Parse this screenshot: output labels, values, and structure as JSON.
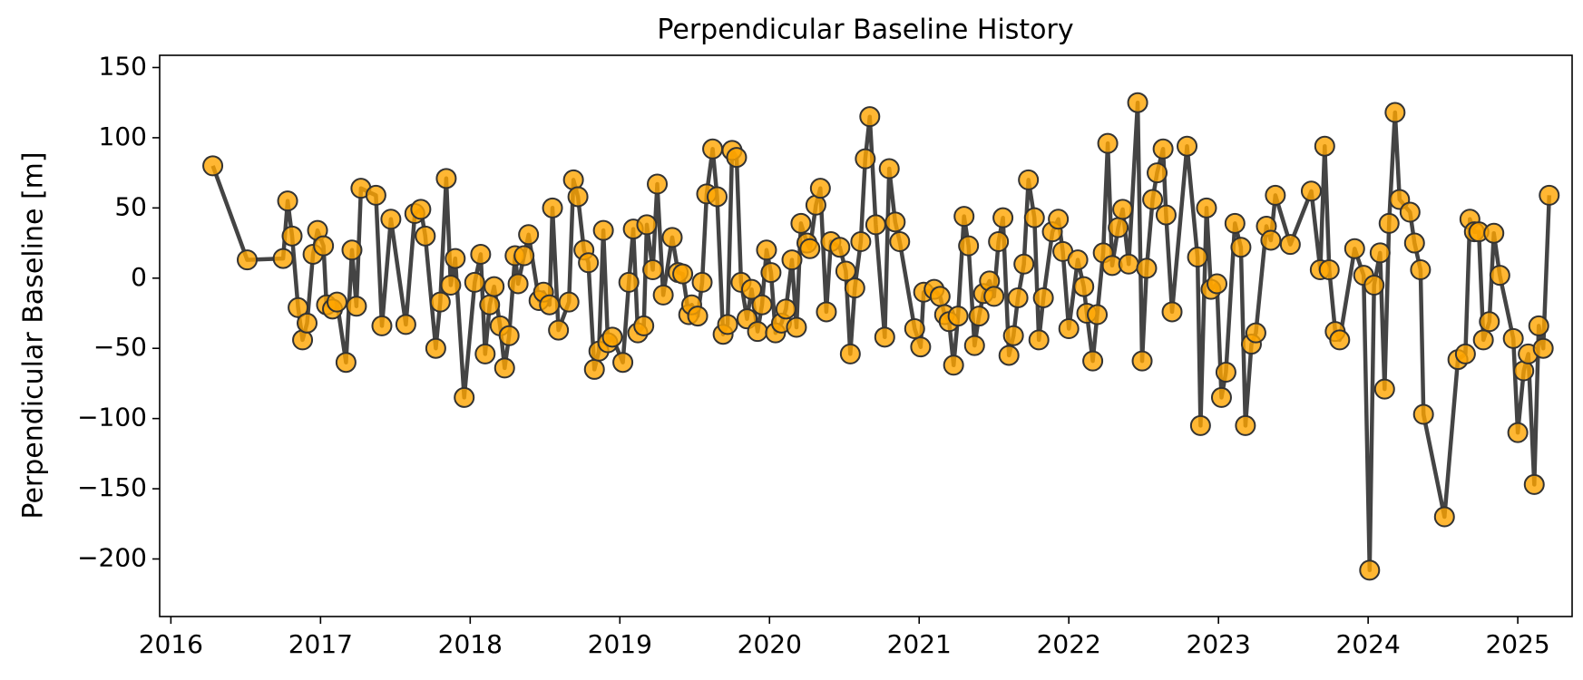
{
  "chart_data": {
    "type": "line",
    "title": "Perpendicular Baseline History",
    "y_label": "Perpendicular Baseline [m]",
    "line_color": "#444444",
    "marker_color": "#ffa500",
    "marker_edge": "#333333",
    "x": [
      2016.28,
      2016.51,
      2016.75,
      2016.78,
      2016.81,
      2016.85,
      2016.88,
      2016.91,
      2016.95,
      2016.98,
      2017.02,
      2017.04,
      2017.08,
      2017.11,
      2017.17,
      2017.21,
      2017.24,
      2017.27,
      2017.37,
      2017.41,
      2017.47,
      2017.57,
      2017.63,
      2017.67,
      2017.7,
      2017.77,
      2017.8,
      2017.84,
      2017.87,
      2017.9,
      2017.96,
      2018.03,
      2018.07,
      2018.1,
      2018.13,
      2018.16,
      2018.2,
      2018.23,
      2018.26,
      2018.3,
      2018.32,
      2018.36,
      2018.39,
      2018.46,
      2018.49,
      2018.53,
      2018.55,
      2018.59,
      2018.66,
      2018.69,
      2018.72,
      2018.76,
      2018.79,
      2018.83,
      2018.86,
      2018.89,
      2018.92,
      2018.95,
      2019.02,
      2019.06,
      2019.09,
      2019.12,
      2019.16,
      2019.18,
      2019.22,
      2019.25,
      2019.29,
      2019.35,
      2019.39,
      2019.42,
      2019.46,
      2019.48,
      2019.52,
      2019.55,
      2019.58,
      2019.62,
      2019.65,
      2019.69,
      2019.72,
      2019.75,
      2019.78,
      2019.81,
      2019.85,
      2019.88,
      2019.92,
      2019.95,
      2019.98,
      2020.01,
      2020.04,
      2020.08,
      2020.11,
      2020.15,
      2020.18,
      2020.21,
      2020.25,
      2020.27,
      2020.31,
      2020.34,
      2020.38,
      2020.41,
      2020.47,
      2020.51,
      2020.54,
      2020.57,
      2020.61,
      2020.64,
      2020.67,
      2020.71,
      2020.77,
      2020.8,
      2020.84,
      2020.87,
      2020.97,
      2021.01,
      2021.03,
      2021.1,
      2021.14,
      2021.17,
      2021.2,
      2021.23,
      2021.26,
      2021.3,
      2021.33,
      2021.37,
      2021.4,
      2021.43,
      2021.47,
      2021.5,
      2021.53,
      2021.56,
      2021.6,
      2021.63,
      2021.66,
      2021.7,
      2021.73,
      2021.77,
      2021.8,
      2021.83,
      2021.89,
      2021.93,
      2021.96,
      2022.0,
      2022.06,
      2022.1,
      2022.12,
      2022.16,
      2022.19,
      2022.23,
      2022.26,
      2022.29,
      2022.33,
      2022.36,
      2022.4,
      2022.46,
      2022.49,
      2022.52,
      2022.56,
      2022.59,
      2022.63,
      2022.65,
      2022.69,
      2022.79,
      2022.86,
      2022.88,
      2022.92,
      2022.95,
      2022.99,
      2023.02,
      2023.05,
      2023.11,
      2023.15,
      2023.18,
      2023.22,
      2023.25,
      2023.32,
      2023.35,
      2023.38,
      2023.48,
      2023.62,
      2023.68,
      2023.71,
      2023.74,
      2023.78,
      2023.81,
      2023.91,
      2023.97,
      2024.01,
      2024.04,
      2024.08,
      2024.11,
      2024.14,
      2024.18,
      2024.21,
      2024.28,
      2024.31,
      2024.35,
      2024.37,
      2024.51,
      2024.6,
      2024.65,
      2024.68,
      2024.71,
      2024.74,
      2024.77,
      2024.81,
      2024.84,
      2024.88,
      2024.97,
      2025.0,
      2025.04,
      2025.07,
      2025.11,
      2025.14,
      2025.17,
      2025.21
    ],
    "values": [
      80,
      13,
      14,
      55,
      30,
      -21,
      -44,
      -32,
      17,
      34,
      23,
      -19,
      -22,
      -17,
      -60,
      20,
      -20,
      64,
      59,
      -34,
      42,
      -33,
      46,
      49,
      30,
      -50,
      -17,
      71,
      -5,
      14,
      -85,
      -3,
      17,
      -54,
      -19,
      -6,
      -34,
      -64,
      -41,
      16,
      -4,
      16,
      31,
      -16,
      -10,
      -19,
      50,
      -37,
      -17,
      70,
      58,
      20,
      11,
      -65,
      -52,
      34,
      -46,
      -42,
      -60,
      -3,
      35,
      -39,
      -34,
      38,
      6,
      67,
      -12,
      29,
      4,
      3,
      -26,
      -19,
      -27,
      -3,
      60,
      92,
      58,
      -40,
      -33,
      91,
      86,
      -3,
      -29,
      -8,
      -38,
      -19,
      20,
      4,
      -39,
      -32,
      -22,
      13,
      -35,
      39,
      25,
      21,
      52,
      64,
      -24,
      26,
      22,
      5,
      -54,
      -7,
      26,
      85,
      115,
      38,
      -42,
      78,
      40,
      26,
      -36,
      -49,
      -10,
      -8,
      -13,
      -26,
      -31,
      -62,
      -27,
      44,
      23,
      -48,
      -27,
      -11,
      -2,
      -13,
      26,
      43,
      -55,
      -41,
      -14,
      10,
      70,
      43,
      -44,
      -14,
      33,
      42,
      19,
      -36,
      13,
      -6,
      -25,
      -59,
      -26,
      18,
      96,
      9,
      36,
      49,
      10,
      125,
      -59,
      7,
      56,
      75,
      92,
      45,
      -24,
      94,
      15,
      -105,
      50,
      -8,
      -4,
      -85,
      -67,
      39,
      22,
      -105,
      -47,
      -39,
      37,
      27,
      59,
      24,
      62,
      6,
      94,
      6,
      -38,
      -44,
      21,
      2,
      -208,
      -5,
      18,
      -79,
      39,
      118,
      56,
      47,
      25,
      6,
      -97,
      -170,
      -58,
      -54,
      42,
      33,
      33,
      -44,
      -31,
      32,
      2,
      -43,
      -110,
      -66,
      -54,
      -147,
      -34,
      -50,
      59
    ],
    "xlim": [
      2015.925,
      2025.363
    ],
    "ylim": [
      -241,
      158.7
    ],
    "xticks": [
      2016,
      2017,
      2018,
      2019,
      2020,
      2021,
      2022,
      2023,
      2024,
      2025
    ],
    "yticks": [
      {
        "value": -200,
        "label": "−200"
      },
      {
        "value": -150,
        "label": "−150"
      },
      {
        "value": -100,
        "label": "−100"
      },
      {
        "value": -50,
        "label": "−50"
      },
      0,
      50,
      100,
      150
    ]
  }
}
